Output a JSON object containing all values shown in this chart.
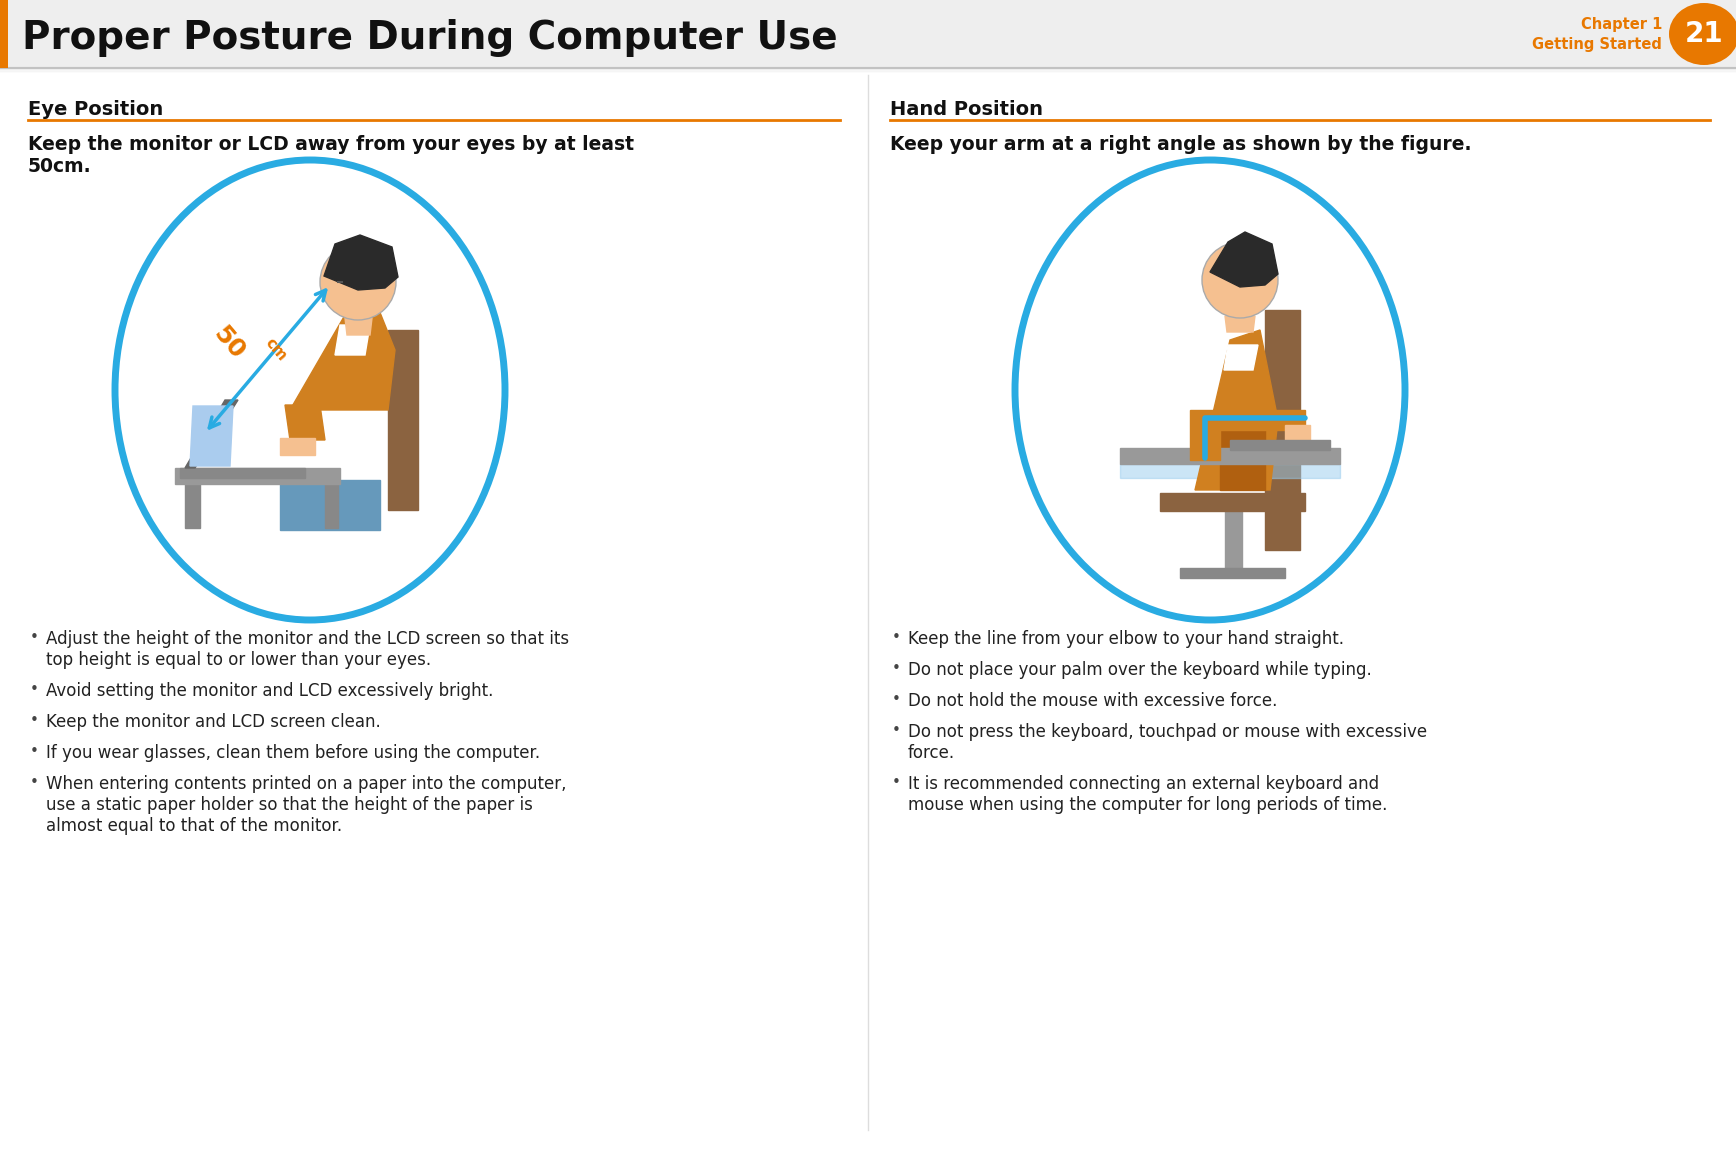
{
  "title": "Proper Posture During Computer Use",
  "chapter_label": "Chapter 1",
  "chapter_sublabel": "Getting Started",
  "chapter_num": "21",
  "bg_color": "#ffffff",
  "orange": "#E87800",
  "blue": "#29ABE2",
  "gray_line": "#c8c8c8",
  "section1_title": "Eye Position",
  "section2_title": "Hand Position",
  "section1_bold_line1": "Keep the monitor or LCD away from your eyes by at least",
  "section1_bold_line2": "50cm.",
  "section2_bold": "Keep your arm at a right angle as shown by the figure.",
  "eye_bullet_groups": [
    [
      "Adjust the height of the monitor and the LCD screen so that its",
      "top height is equal to or lower than your eyes."
    ],
    [
      "Avoid setting the monitor and LCD excessively bright."
    ],
    [
      "Keep the monitor and LCD screen clean."
    ],
    [
      "If you wear glasses, clean them before using the computer."
    ],
    [
      "When entering contents printed on a paper into the computer,",
      "use a static paper holder so that the height of the paper is",
      "almost equal to that of the monitor."
    ]
  ],
  "hand_bullet_groups": [
    [
      "Keep the line from your elbow to your hand straight."
    ],
    [
      "Do not place your palm over the keyboard while typing."
    ],
    [
      "Do not hold the mouse with excessive force."
    ],
    [
      "Do not press the keyboard, touchpad or mouse with excessive",
      "force."
    ],
    [
      "It is recommended connecting an external keyboard and",
      "mouse when using the computer for long periods of time."
    ]
  ],
  "skin_color": "#F5C090",
  "hair_color": "#2a2a2a",
  "jacket_color": "#D08020",
  "jacket_shadow": "#B06010",
  "desk_color": "#aaaaaa",
  "chair_color": "#8B6340",
  "laptop_color": "#777777",
  "blue_pant": "#6699bb",
  "header_gray": "#eeeeee"
}
